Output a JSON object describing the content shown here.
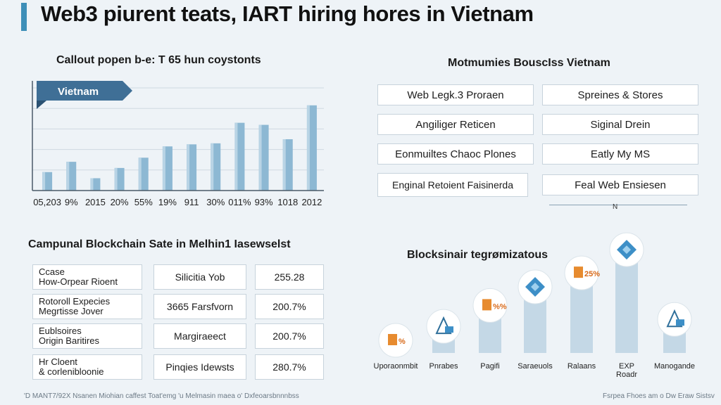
{
  "header": {
    "title": "Web3 piurent teats, IART hiring hores in Vietnam"
  },
  "bar_section": {
    "subtitle": "Callout popen b‑e: T 65 hun coystonts",
    "tag": "Vietnam"
  },
  "chart_data": {
    "type": "bar",
    "title": "Callout popen b‑e: T 65 hun coystonts",
    "tick_labels": [
      "05,203",
      "9%",
      "2015",
      "20%",
      "55%",
      "19%",
      "911",
      "30%",
      "011%",
      "93%",
      "1018",
      "2012"
    ],
    "values": [
      18,
      28,
      12,
      22,
      32,
      43,
      45,
      46,
      66,
      64,
      50,
      83
    ],
    "ylim": [
      0,
      100
    ],
    "grid": true
  },
  "right_panel": {
    "title": "Motmumies BouscIss Vietnam",
    "items": [
      "Web Legk.3 Proraen",
      "Spreines & Stores",
      "Angiliger Reticen",
      "Siginal Drein",
      "Eonmuiltes Chaoc Plones",
      "Eatly My MS",
      "Enginal Retoient Faisinerda",
      "Feal Web Ensiesen"
    ],
    "footnote": "N"
  },
  "table_section": {
    "title": "Campunal Blockchain Sate in Melhin1 Iasewselst",
    "rows": [
      {
        "left1": "Ccase",
        "left2": "How-Orpear Rioent",
        "mid": "Silicitia Yob",
        "right": "255.28"
      },
      {
        "left1": "Rotoroll Expecies",
        "left2": "Megrtisse Jover",
        "mid": "3665 Farsfvorn",
        "right": "200.7%"
      },
      {
        "left1": "Eublsoires",
        "left2": "Origin Baritires",
        "mid": "Margiraeect",
        "right": "200.7%"
      },
      {
        "left1": "Hr Cloent",
        "left2": "& corlenibloonie",
        "mid": "Pinqies Idewsts",
        "right": "280.7%"
      }
    ]
  },
  "progress_section": {
    "title": "Blocksinair tegrømizatous",
    "levels": [
      0,
      12,
      30,
      46,
      58,
      78,
      18
    ],
    "badges": [
      "%",
      "",
      "%%",
      "",
      "25%",
      "",
      ""
    ],
    "labels": [
      "Uporaonmbit",
      "Pnrabes",
      "Pagifi",
      "Saraeuols",
      "Ralaans",
      "EXP Roadr",
      "Manogande"
    ],
    "colors": {
      "bar": "#c4d8e6",
      "orange": "#e78b2f",
      "blue": "#3d8fc7"
    }
  },
  "footer": {
    "left": "'D MANT7/92X Nsanen Miohian caffest Toat'emg 'u Melmasin maea o' Dxfeoarsbnnnbss",
    "right": "Fsrpea Fhoes am o Dw Eraw Sistsv"
  }
}
